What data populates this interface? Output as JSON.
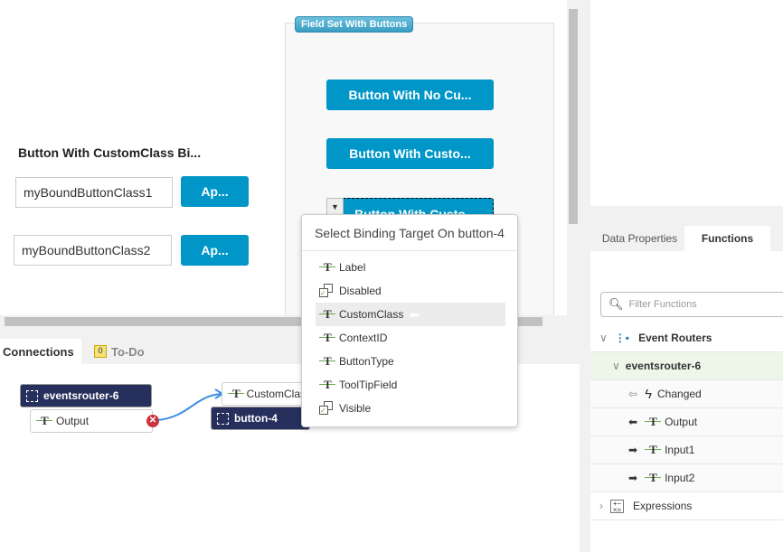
{
  "canvas": {
    "heading": "Button With CustomClass Bi...",
    "inputs": [
      {
        "value": "myBoundButtonClass1",
        "button": "Ap..."
      },
      {
        "value": "myBoundButtonClass2",
        "button": "Ap..."
      }
    ],
    "fieldset": {
      "legend": "Field Set With Buttons",
      "buttons": [
        "Button With No Cu...",
        "Button With Custo...",
        "Button With Custo"
      ]
    }
  },
  "popup": {
    "title": "Select Binding Target On button-4",
    "items": [
      {
        "label": "Label",
        "icon": "text-icon"
      },
      {
        "label": "Disabled",
        "icon": "checkbox-icon"
      },
      {
        "label": "CustomClass",
        "icon": "text-icon",
        "selected": true
      },
      {
        "label": "ContextID",
        "icon": "text-icon"
      },
      {
        "label": "ButtonType",
        "icon": "text-icon"
      },
      {
        "label": "ToolTipField",
        "icon": "text-icon"
      },
      {
        "label": "Visible",
        "icon": "checkbox-icon"
      }
    ]
  },
  "bottom": {
    "tabs": [
      "Connections",
      "To-Do"
    ],
    "todo_count": "0",
    "nodes": {
      "router": "eventsrouter-6",
      "output": "Output",
      "target_prop": "CustomClass",
      "target": "button-4"
    }
  },
  "right": {
    "tabs": [
      "Data Properties",
      "Functions"
    ],
    "filter_placeholder": "Filter Functions",
    "tree": {
      "group": "Event Routers",
      "router": "eventsrouter-6",
      "items": [
        "Changed",
        "Output",
        "Input1",
        "Input2"
      ],
      "expressions": "Expressions"
    }
  },
  "colors": {
    "accent": "#0096c7",
    "node_dark": "#272f5c",
    "selected_row": "#eef6ea"
  }
}
